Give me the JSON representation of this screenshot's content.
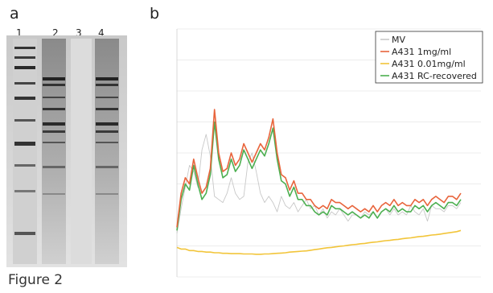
{
  "figure": {
    "caption": "Figure 2",
    "panel_a_label": "a",
    "panel_b_label": "b",
    "lane_labels": [
      "1",
      "2",
      "3",
      "4"
    ]
  },
  "chart_data": {
    "type": "line",
    "legend_position": "top-right",
    "grid": true,
    "ylim": [
      0,
      8
    ],
    "x": [
      0,
      5,
      10,
      15,
      20,
      25,
      30,
      35,
      40,
      45,
      50,
      55,
      60,
      65,
      70,
      75,
      80,
      85,
      90,
      95,
      100,
      105,
      110,
      115,
      120,
      125,
      130,
      135,
      140,
      145,
      150,
      155,
      160,
      165,
      170,
      175,
      180,
      185,
      190,
      195,
      200,
      205,
      210,
      215,
      220,
      225,
      230,
      235,
      240,
      245,
      250,
      255,
      260,
      265,
      270,
      275,
      280,
      285,
      290,
      295,
      300,
      305,
      310,
      315,
      320,
      325,
      330,
      335,
      340
    ],
    "series": [
      {
        "name": "MV",
        "color": "#c8c8c8",
        "values": [
          1.4,
          2.2,
          2.9,
          3.6,
          3.4,
          2.9,
          4.1,
          4.6,
          3.9,
          2.6,
          2.5,
          2.4,
          2.7,
          3.2,
          2.7,
          2.5,
          2.6,
          3.7,
          4.0,
          3.4,
          2.7,
          2.4,
          2.6,
          2.4,
          2.1,
          2.6,
          2.3,
          2.2,
          2.4,
          2.1,
          2.3,
          2.5,
          2.2,
          2.3,
          2.0,
          2.2,
          1.9,
          2.1,
          2.0,
          2.2,
          2.0,
          1.8,
          2.0,
          2.0,
          1.9,
          2.1,
          2.0,
          2.1,
          1.9,
          2.1,
          2.2,
          2.0,
          2.2,
          2.0,
          2.1,
          2.0,
          2.3,
          2.1,
          2.0,
          2.2,
          1.8,
          2.3,
          2.2,
          2.2,
          2.1,
          2.3,
          2.3,
          2.2,
          2.4
        ]
      },
      {
        "name": "A431 1mg/ml",
        "color": "#e8643c",
        "values": [
          1.6,
          2.7,
          3.2,
          3.0,
          3.8,
          3.2,
          2.7,
          2.9,
          3.5,
          5.4,
          4.0,
          3.4,
          3.5,
          4.0,
          3.6,
          3.8,
          4.3,
          4.0,
          3.7,
          4.0,
          4.3,
          4.1,
          4.5,
          5.1,
          4.0,
          3.3,
          3.2,
          2.8,
          3.1,
          2.7,
          2.7,
          2.5,
          2.5,
          2.3,
          2.2,
          2.3,
          2.2,
          2.5,
          2.4,
          2.4,
          2.3,
          2.2,
          2.3,
          2.2,
          2.1,
          2.2,
          2.1,
          2.3,
          2.1,
          2.3,
          2.4,
          2.3,
          2.5,
          2.3,
          2.4,
          2.3,
          2.3,
          2.5,
          2.4,
          2.5,
          2.3,
          2.5,
          2.6,
          2.5,
          2.4,
          2.6,
          2.6,
          2.5,
          2.7
        ]
      },
      {
        "name": "A431 0.01mg/ml",
        "color": "#f2c53a",
        "values": [
          0.95,
          0.9,
          0.9,
          0.85,
          0.85,
          0.82,
          0.82,
          0.8,
          0.8,
          0.78,
          0.78,
          0.76,
          0.76,
          0.75,
          0.75,
          0.75,
          0.74,
          0.74,
          0.74,
          0.73,
          0.73,
          0.74,
          0.74,
          0.75,
          0.76,
          0.77,
          0.78,
          0.8,
          0.81,
          0.82,
          0.83,
          0.84,
          0.86,
          0.88,
          0.9,
          0.92,
          0.94,
          0.95,
          0.97,
          0.99,
          1.0,
          1.02,
          1.04,
          1.05,
          1.07,
          1.08,
          1.1,
          1.12,
          1.13,
          1.15,
          1.17,
          1.18,
          1.2,
          1.21,
          1.23,
          1.25,
          1.26,
          1.28,
          1.3,
          1.31,
          1.33,
          1.35,
          1.36,
          1.38,
          1.4,
          1.42,
          1.44,
          1.46,
          1.5
        ]
      },
      {
        "name": "A431 RC-recovered",
        "color": "#4caf50",
        "values": [
          1.5,
          2.5,
          3.0,
          2.8,
          3.6,
          3.0,
          2.5,
          2.7,
          3.3,
          5.0,
          3.8,
          3.2,
          3.3,
          3.8,
          3.4,
          3.6,
          4.1,
          3.8,
          3.5,
          3.8,
          4.1,
          3.9,
          4.3,
          4.8,
          3.8,
          3.1,
          3.0,
          2.6,
          2.9,
          2.5,
          2.5,
          2.3,
          2.3,
          2.1,
          2.0,
          2.1,
          2.0,
          2.3,
          2.2,
          2.2,
          2.1,
          2.0,
          2.1,
          2.0,
          1.9,
          2.0,
          1.9,
          2.1,
          1.9,
          2.1,
          2.2,
          2.1,
          2.3,
          2.1,
          2.2,
          2.1,
          2.1,
          2.3,
          2.2,
          2.3,
          2.1,
          2.3,
          2.4,
          2.3,
          2.2,
          2.4,
          2.4,
          2.3,
          2.5
        ]
      }
    ]
  }
}
